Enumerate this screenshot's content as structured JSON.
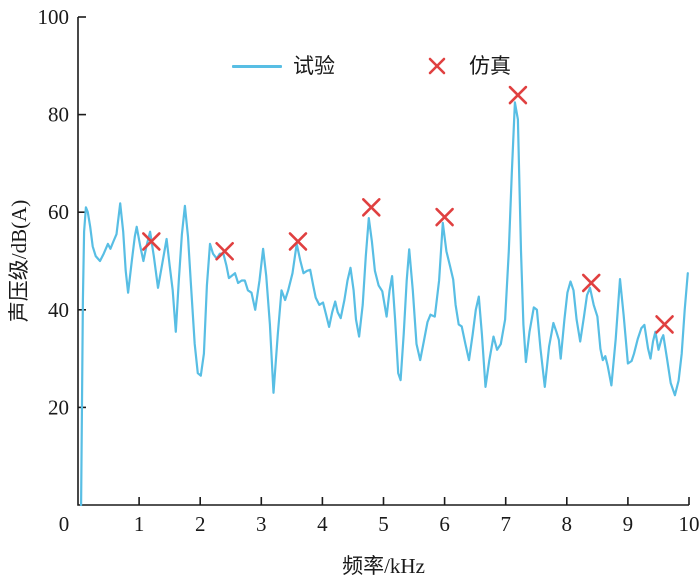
{
  "figure": {
    "legend": {
      "test_label": "试验",
      "sim_label": "仿真"
    },
    "colors": {
      "test_line": "#58BEE4",
      "sim_marker": "#E04040",
      "axis": "#1a1a1a",
      "text": "#1a1a1a",
      "background": "#ffffff"
    }
  },
  "chart_data": {
    "type": "line",
    "title": "",
    "xlabel": "频率/kHz",
    "ylabel": "声压级/dB(A)",
    "xlim": [
      0,
      10
    ],
    "ylim": [
      0,
      100
    ],
    "x_ticks": [
      0,
      1,
      2,
      3,
      4,
      5,
      6,
      7,
      8,
      9,
      10
    ],
    "y_ticks": [
      20,
      40,
      60,
      80,
      100
    ],
    "grid": false,
    "legend_position": "top-center",
    "series": [
      {
        "name": "试验",
        "type": "line",
        "color": "#58BEE4",
        "points": [
          [
            0.05,
            0
          ],
          [
            0.08,
            42
          ],
          [
            0.1,
            56
          ],
          [
            0.13,
            61
          ],
          [
            0.16,
            60
          ],
          [
            0.2,
            57
          ],
          [
            0.24,
            53
          ],
          [
            0.29,
            51
          ],
          [
            0.36,
            50
          ],
          [
            0.42,
            51.5
          ],
          [
            0.49,
            53.5
          ],
          [
            0.53,
            52.5
          ],
          [
            0.58,
            54
          ],
          [
            0.63,
            55.5
          ],
          [
            0.69,
            61.8
          ],
          [
            0.74,
            56
          ],
          [
            0.78,
            48
          ],
          [
            0.82,
            43.5
          ],
          [
            0.88,
            50
          ],
          [
            0.93,
            55
          ],
          [
            0.96,
            57
          ],
          [
            1.02,
            53
          ],
          [
            1.07,
            50
          ],
          [
            1.12,
            53
          ],
          [
            1.18,
            56
          ],
          [
            1.24,
            51
          ],
          [
            1.31,
            44.5
          ],
          [
            1.38,
            49.5
          ],
          [
            1.45,
            54.5
          ],
          [
            1.5,
            49
          ],
          [
            1.55,
            44
          ],
          [
            1.6,
            35.5
          ],
          [
            1.65,
            46
          ],
          [
            1.7,
            55.5
          ],
          [
            1.75,
            61.3
          ],
          [
            1.8,
            55
          ],
          [
            1.85,
            45
          ],
          [
            1.91,
            33
          ],
          [
            1.96,
            27
          ],
          [
            2.01,
            26.5
          ],
          [
            2.06,
            31
          ],
          [
            2.11,
            45
          ],
          [
            2.16,
            53.5
          ],
          [
            2.21,
            51.5
          ],
          [
            2.27,
            50.5
          ],
          [
            2.32,
            51.5
          ],
          [
            2.38,
            51.5
          ],
          [
            2.43,
            49
          ],
          [
            2.47,
            46.5
          ],
          [
            2.52,
            47
          ],
          [
            2.57,
            47.5
          ],
          [
            2.62,
            45.5
          ],
          [
            2.68,
            46
          ],
          [
            2.73,
            46
          ],
          [
            2.78,
            44
          ],
          [
            2.84,
            43.5
          ],
          [
            2.9,
            40
          ],
          [
            2.97,
            46
          ],
          [
            3.03,
            52.5
          ],
          [
            3.08,
            47
          ],
          [
            3.14,
            37
          ],
          [
            3.2,
            23
          ],
          [
            3.27,
            35
          ],
          [
            3.33,
            44
          ],
          [
            3.39,
            42
          ],
          [
            3.44,
            44
          ],
          [
            3.51,
            47.5
          ],
          [
            3.58,
            53.5
          ],
          [
            3.64,
            50
          ],
          [
            3.69,
            47.5
          ],
          [
            3.75,
            48
          ],
          [
            3.8,
            48.2
          ],
          [
            3.85,
            45
          ],
          [
            3.89,
            42.5
          ],
          [
            3.95,
            41
          ],
          [
            4.01,
            41.5
          ],
          [
            4.06,
            39
          ],
          [
            4.11,
            36.5
          ],
          [
            4.16,
            39.5
          ],
          [
            4.21,
            41.7
          ],
          [
            4.25,
            39.5
          ],
          [
            4.3,
            38.3
          ],
          [
            4.36,
            42
          ],
          [
            4.41,
            46
          ],
          [
            4.46,
            48.6
          ],
          [
            4.51,
            44
          ],
          [
            4.55,
            38
          ],
          [
            4.6,
            34.5
          ],
          [
            4.66,
            41
          ],
          [
            4.71,
            51
          ],
          [
            4.76,
            58.8
          ],
          [
            4.81,
            54
          ],
          [
            4.86,
            48
          ],
          [
            4.92,
            45
          ],
          [
            4.98,
            43.8
          ],
          [
            5.05,
            38.6
          ],
          [
            5.1,
            44
          ],
          [
            5.14,
            46.9
          ],
          [
            5.19,
            38
          ],
          [
            5.24,
            27
          ],
          [
            5.28,
            25.6
          ],
          [
            5.33,
            35
          ],
          [
            5.38,
            46
          ],
          [
            5.42,
            52.4
          ],
          [
            5.48,
            44
          ],
          [
            5.54,
            33
          ],
          [
            5.6,
            29.7
          ],
          [
            5.66,
            33.5
          ],
          [
            5.72,
            37.5
          ],
          [
            5.77,
            39
          ],
          [
            5.84,
            38.6
          ],
          [
            5.91,
            46
          ],
          [
            5.97,
            57.8
          ],
          [
            6.03,
            52
          ],
          [
            6.09,
            48.9
          ],
          [
            6.14,
            46.2
          ],
          [
            6.18,
            41
          ],
          [
            6.23,
            37
          ],
          [
            6.28,
            36.6
          ],
          [
            6.34,
            33
          ],
          [
            6.4,
            29.7
          ],
          [
            6.46,
            35
          ],
          [
            6.51,
            40
          ],
          [
            6.56,
            42.7
          ],
          [
            6.61,
            35
          ],
          [
            6.67,
            24.2
          ],
          [
            6.73,
            29.5
          ],
          [
            6.8,
            34.5
          ],
          [
            6.86,
            31.8
          ],
          [
            6.92,
            33
          ],
          [
            6.99,
            38
          ],
          [
            7.05,
            52
          ],
          [
            7.1,
            68
          ],
          [
            7.15,
            82.5
          ],
          [
            7.2,
            79
          ],
          [
            7.25,
            52
          ],
          [
            7.29,
            37
          ],
          [
            7.33,
            29.3
          ],
          [
            7.39,
            35.5
          ],
          [
            7.46,
            40.5
          ],
          [
            7.51,
            40
          ],
          [
            7.57,
            32
          ],
          [
            7.64,
            24.2
          ],
          [
            7.71,
            32.5
          ],
          [
            7.78,
            37.3
          ],
          [
            7.83,
            35.5
          ],
          [
            7.87,
            33.8
          ],
          [
            7.9,
            30
          ],
          [
            7.96,
            38
          ],
          [
            8.01,
            43.5
          ],
          [
            8.06,
            45.8
          ],
          [
            8.11,
            44
          ],
          [
            8.16,
            38
          ],
          [
            8.22,
            33.5
          ],
          [
            8.28,
            38.5
          ],
          [
            8.33,
            43
          ],
          [
            8.38,
            44.5
          ],
          [
            8.44,
            41
          ],
          [
            8.5,
            38.6
          ],
          [
            8.55,
            32
          ],
          [
            8.59,
            29.7
          ],
          [
            8.63,
            30.5
          ],
          [
            8.67,
            28.5
          ],
          [
            8.73,
            24.5
          ],
          [
            8.8,
            34
          ],
          [
            8.87,
            46.3
          ],
          [
            8.93,
            39
          ],
          [
            9.0,
            29
          ],
          [
            9.06,
            29.5
          ],
          [
            9.1,
            31
          ],
          [
            9.16,
            34
          ],
          [
            9.22,
            36.2
          ],
          [
            9.27,
            36.9
          ],
          [
            9.33,
            32
          ],
          [
            9.37,
            30
          ],
          [
            9.41,
            33.5
          ],
          [
            9.45,
            35.5
          ],
          [
            9.5,
            31.8
          ],
          [
            9.55,
            34
          ],
          [
            9.58,
            34.8
          ],
          [
            9.64,
            30
          ],
          [
            9.7,
            25
          ],
          [
            9.77,
            22.5
          ],
          [
            9.83,
            25.5
          ],
          [
            9.88,
            31
          ],
          [
            9.93,
            40
          ],
          [
            9.98,
            47.5
          ]
        ]
      },
      {
        "name": "仿真",
        "type": "scatter",
        "marker": "x",
        "color": "#E04040",
        "points": [
          [
            1.2,
            54
          ],
          [
            2.4,
            52
          ],
          [
            3.6,
            54
          ],
          [
            4.8,
            61
          ],
          [
            6.0,
            59
          ],
          [
            7.2,
            84
          ],
          [
            8.4,
            45.5
          ],
          [
            9.6,
            37
          ]
        ]
      }
    ]
  }
}
